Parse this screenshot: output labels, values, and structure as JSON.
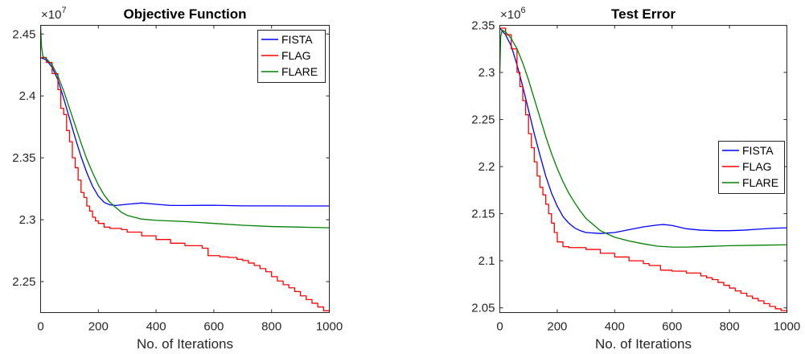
{
  "chart_data": [
    {
      "type": "line",
      "title": "Objective Function",
      "xlabel": "No. of Iterations",
      "ylabel": "",
      "y_multiplier_base": "×10",
      "y_multiplier_exp": "7",
      "xlim": [
        0,
        1000
      ],
      "ylim": [
        2.225,
        2.457
      ],
      "xticks": [
        0,
        200,
        400,
        600,
        800,
        1000
      ],
      "xtick_labels": [
        "0",
        "200",
        "400",
        "600",
        "800",
        "1000"
      ],
      "yticks": [
        2.25,
        2.3,
        2.35,
        2.4,
        2.45
      ],
      "ytick_labels": [
        "2.25",
        "2.3",
        "2.35",
        "2.4",
        "2.45"
      ],
      "legend_position": "top-right",
      "series": [
        {
          "name": "FISTA",
          "color": "#0000ff",
          "step": false,
          "x": [
            0,
            20,
            40,
            60,
            80,
            100,
            120,
            140,
            160,
            180,
            200,
            220,
            240,
            260,
            280,
            300,
            350,
            400,
            450,
            500,
            600,
            700,
            800,
            900,
            1000
          ],
          "y": [
            2.431,
            2.429,
            2.423,
            2.413,
            2.398,
            2.382,
            2.366,
            2.351,
            2.338,
            2.327,
            2.319,
            2.314,
            2.312,
            2.3115,
            2.312,
            2.3125,
            2.3135,
            2.3125,
            2.3115,
            2.3115,
            2.3117,
            2.3112,
            2.3112,
            2.3111,
            2.3111
          ]
        },
        {
          "name": "FLAG",
          "color": "#ff0000",
          "step": true,
          "x": [
            0,
            20,
            40,
            60,
            70,
            80,
            90,
            100,
            110,
            120,
            130,
            140,
            150,
            160,
            170,
            180,
            190,
            200,
            220,
            240,
            280,
            300,
            350,
            400,
            450,
            500,
            560,
            580,
            620,
            650,
            680,
            700,
            720,
            740,
            760,
            780,
            800,
            820,
            840,
            860,
            880,
            900,
            920,
            940,
            960,
            980,
            1000
          ],
          "y": [
            2.431,
            2.427,
            2.418,
            2.405,
            2.39,
            2.385,
            2.372,
            2.363,
            2.35,
            2.342,
            2.332,
            2.322,
            2.318,
            2.311,
            2.307,
            2.302,
            2.299,
            2.297,
            2.294,
            2.293,
            2.292,
            2.29,
            2.287,
            2.284,
            2.281,
            2.279,
            2.277,
            2.271,
            2.27,
            2.2695,
            2.268,
            2.267,
            2.265,
            2.263,
            2.2605,
            2.258,
            2.254,
            2.2505,
            2.2475,
            2.245,
            2.242,
            2.2385,
            2.2355,
            2.2325,
            2.2295,
            2.2265,
            2.225
          ]
        },
        {
          "name": "FLARE",
          "color": "#008000",
          "step": false,
          "x": [
            0,
            3,
            8,
            20,
            40,
            60,
            80,
            100,
            120,
            140,
            160,
            180,
            200,
            220,
            240,
            260,
            280,
            300,
            350,
            400,
            450,
            500,
            600,
            700,
            800,
            900,
            1000
          ],
          "y": [
            2.457,
            2.44,
            2.432,
            2.43,
            2.425,
            2.416,
            2.404,
            2.39,
            2.376,
            2.362,
            2.349,
            2.338,
            2.328,
            2.32,
            2.314,
            2.31,
            2.306,
            2.3035,
            2.3005,
            2.2995,
            2.299,
            2.2985,
            2.297,
            2.2955,
            2.2945,
            2.294,
            2.2935
          ]
        }
      ]
    },
    {
      "type": "line",
      "title": "Test Error",
      "xlabel": "No. of Iterations",
      "ylabel": "",
      "y_multiplier_base": "×10",
      "y_multiplier_exp": "6",
      "xlim": [
        0,
        1000
      ],
      "ylim": [
        2.045,
        2.35
      ],
      "xticks": [
        0,
        200,
        400,
        600,
        800,
        1000
      ],
      "xtick_labels": [
        "0",
        "200",
        "400",
        "600",
        "800",
        "1000"
      ],
      "yticks": [
        2.05,
        2.1,
        2.15,
        2.2,
        2.25,
        2.3,
        2.35
      ],
      "ytick_labels": [
        "2.05",
        "2.1",
        "2.15",
        "2.2",
        "2.25",
        "2.3",
        "2.35"
      ],
      "legend_position": "right",
      "series": [
        {
          "name": "FISTA",
          "color": "#0000ff",
          "step": false,
          "x": [
            0,
            20,
            40,
            60,
            80,
            100,
            120,
            140,
            160,
            180,
            200,
            220,
            240,
            260,
            280,
            300,
            350,
            400,
            450,
            500,
            550,
            570,
            600,
            650,
            700,
            750,
            800,
            850,
            900,
            950,
            1000
          ],
          "y": [
            2.347,
            2.34,
            2.328,
            2.308,
            2.285,
            2.26,
            2.235,
            2.212,
            2.19,
            2.172,
            2.158,
            2.147,
            2.14,
            2.135,
            2.132,
            2.13,
            2.129,
            2.13,
            2.133,
            2.136,
            2.138,
            2.1385,
            2.1375,
            2.134,
            2.1325,
            2.132,
            2.132,
            2.1325,
            2.1335,
            2.1345,
            2.135
          ]
        },
        {
          "name": "FLAG",
          "color": "#ff0000",
          "step": true,
          "x": [
            0,
            20,
            40,
            60,
            70,
            80,
            90,
            100,
            110,
            120,
            130,
            140,
            150,
            160,
            170,
            180,
            190,
            200,
            220,
            240,
            300,
            350,
            400,
            450,
            500,
            520,
            560,
            600,
            650,
            700,
            720,
            740,
            760,
            780,
            800,
            820,
            840,
            860,
            880,
            900,
            920,
            940,
            960,
            980,
            1000
          ],
          "y": [
            2.347,
            2.34,
            2.325,
            2.3,
            2.285,
            2.27,
            2.255,
            2.235,
            2.22,
            2.205,
            2.19,
            2.178,
            2.17,
            2.16,
            2.15,
            2.14,
            2.13,
            2.12,
            2.115,
            2.114,
            2.112,
            2.108,
            2.104,
            2.1,
            2.097,
            2.095,
            2.09,
            2.089,
            2.087,
            2.084,
            2.082,
            2.08,
            2.077,
            2.074,
            2.071,
            2.068,
            2.0655,
            2.0625,
            2.06,
            2.0575,
            2.0545,
            2.0515,
            2.049,
            2.047,
            2.045
          ]
        },
        {
          "name": "FLARE",
          "color": "#008000",
          "step": false,
          "x": [
            0,
            3,
            8,
            20,
            40,
            60,
            80,
            100,
            120,
            140,
            160,
            180,
            200,
            220,
            240,
            260,
            280,
            300,
            350,
            400,
            450,
            500,
            550,
            600,
            650,
            700,
            800,
            900,
            1000
          ],
          "y": [
            2.3,
            2.338,
            2.345,
            2.343,
            2.336,
            2.325,
            2.31,
            2.292,
            2.272,
            2.252,
            2.232,
            2.214,
            2.198,
            2.184,
            2.172,
            2.162,
            2.153,
            2.145,
            2.132,
            2.125,
            2.121,
            2.118,
            2.1155,
            2.1145,
            2.1145,
            2.115,
            2.116,
            2.1165,
            2.117
          ]
        }
      ]
    }
  ]
}
